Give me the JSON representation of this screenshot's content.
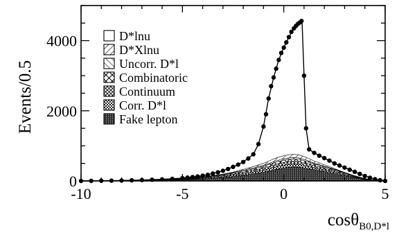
{
  "chart_data": {
    "type": "area",
    "title": "",
    "xlabel": "cosθ",
    "xlabel_subscript": "B0,D*l",
    "ylabel": "Events/0.5",
    "xlim": [
      -10,
      5
    ],
    "ylim": [
      0,
      5000
    ],
    "x_tick_labels": [
      "-10",
      "-5",
      "0",
      "5"
    ],
    "y_tick_labels": [
      "0",
      "2000",
      "4000"
    ],
    "legend_position": "top-left",
    "grid": false,
    "stack_order_bottom_to_top": [
      "Fake lepton",
      "Corr. D*l",
      "Continuum",
      "Combinatoric",
      "Uncorr. D*l",
      "D*Xlnu",
      "D*lnu"
    ],
    "legend": [
      {
        "label": "D*lnu",
        "pattern": "open"
      },
      {
        "label": "D*Xlnu",
        "pattern": "diag-right"
      },
      {
        "label": "Uncorr. D*l",
        "pattern": "diag-left"
      },
      {
        "label": "Combinatoric",
        "pattern": "cross"
      },
      {
        "label": "Continuum",
        "pattern": "dense-cross"
      },
      {
        "label": "Corr. D*l",
        "pattern": "checker"
      },
      {
        "label": "Fake lepton",
        "pattern": "dark-dots"
      }
    ],
    "bins_x": [
      -10,
      -9.5,
      -9,
      -8.5,
      -8,
      -7.5,
      -7,
      -6.5,
      -6,
      -5.5,
      -5,
      -4.5,
      -4,
      -3.5,
      -3,
      -2.5,
      -2,
      -1.5,
      -1,
      -0.75,
      -0.5,
      -0.25,
      0,
      0.25,
      0.5,
      0.75,
      1,
      1.25,
      1.5,
      2,
      2.5,
      3,
      3.5,
      4,
      4.5,
      5
    ],
    "series": [
      {
        "name": "Fake lepton",
        "values": [
          0,
          2,
          4,
          5,
          7,
          9,
          12,
          16,
          21,
          27,
          35,
          45,
          58,
          74,
          95,
          125,
          165,
          205,
          250,
          280,
          315,
          345,
          370,
          390,
          400,
          395,
          370,
          345,
          320,
          270,
          210,
          150,
          90,
          40,
          10,
          0
        ]
      },
      {
        "name": "Corr. D*l",
        "values": [
          0,
          1,
          1,
          2,
          2,
          3,
          4,
          5,
          6,
          8,
          10,
          13,
          16,
          20,
          25,
          32,
          40,
          48,
          58,
          65,
          70,
          75,
          78,
          80,
          80,
          78,
          72,
          65,
          55,
          45,
          35,
          25,
          15,
          7,
          2,
          0
        ]
      },
      {
        "name": "Continuum",
        "values": [
          0,
          1,
          2,
          2,
          3,
          4,
          5,
          6,
          8,
          10,
          12,
          15,
          18,
          22,
          28,
          35,
          42,
          50,
          60,
          65,
          70,
          75,
          78,
          80,
          80,
          78,
          74,
          68,
          60,
          50,
          40,
          30,
          20,
          10,
          3,
          0
        ]
      },
      {
        "name": "Combinatoric",
        "values": [
          0,
          1,
          1,
          2,
          2,
          3,
          3,
          4,
          5,
          7,
          9,
          11,
          14,
          18,
          22,
          28,
          35,
          42,
          50,
          55,
          60,
          62,
          65,
          66,
          66,
          64,
          60,
          55,
          48,
          40,
          32,
          22,
          14,
          6,
          2,
          0
        ]
      },
      {
        "name": "Uncorr. D*l",
        "values": [
          0,
          0,
          1,
          1,
          1,
          2,
          2,
          3,
          4,
          5,
          6,
          8,
          10,
          12,
          15,
          18,
          22,
          26,
          30,
          33,
          36,
          38,
          40,
          40,
          40,
          38,
          35,
          30,
          25,
          20,
          15,
          10,
          6,
          3,
          1,
          0
        ]
      },
      {
        "name": "D*Xlnu",
        "values": [
          0,
          0,
          0,
          0,
          0,
          0,
          0,
          0,
          0,
          0,
          0,
          1,
          3,
          6,
          10,
          16,
          25,
          40,
          55,
          65,
          75,
          83,
          88,
          92,
          92,
          89,
          82,
          72,
          60,
          40,
          20,
          8,
          3,
          0,
          0,
          0
        ]
      }
    ],
    "total_curve": {
      "name": "D*lnu",
      "x": [
        -10,
        -9,
        -8,
        -7,
        -6,
        -5,
        -4.5,
        -4,
        -3.5,
        -3,
        -2.5,
        -2,
        -1.5,
        -1.25,
        -1,
        -0.75,
        -0.5,
        -0.25,
        0,
        0.25,
        0.5,
        0.6,
        0.75,
        0.85,
        0.9,
        1,
        1.1,
        1.25,
        1.5,
        2,
        2.5,
        3,
        3.5,
        4,
        4.5,
        5
      ],
      "y": [
        0,
        5,
        12,
        25,
        45,
        80,
        110,
        150,
        210,
        290,
        400,
        540,
        760,
        1050,
        1550,
        2350,
        2950,
        3450,
        3800,
        4100,
        4350,
        4450,
        4500,
        4550,
        4560,
        3000,
        1500,
        900,
        800,
        650,
        500,
        380,
        260,
        140,
        50,
        0
      ]
    },
    "data_points": {
      "name": "Data",
      "x": [
        -10,
        -9.5,
        -9,
        -8.5,
        -8,
        -7.5,
        -7,
        -6.5,
        -6,
        -5.5,
        -5,
        -4.75,
        -4.5,
        -4.25,
        -4,
        -3.75,
        -3.5,
        -3.25,
        -3,
        -2.75,
        -2.5,
        -2.25,
        -2,
        -1.75,
        -1.5,
        -1.25,
        -1,
        -0.875,
        -0.75,
        -0.625,
        -0.5,
        -0.375,
        -0.25,
        -0.125,
        0,
        0.125,
        0.25,
        0.375,
        0.5,
        0.6,
        0.7,
        0.8,
        0.875,
        1,
        1.1,
        1.25,
        1.5,
        1.75,
        2,
        2.25,
        2.5,
        2.75,
        3,
        3.25,
        3.5,
        3.75,
        4,
        4.25,
        4.5,
        4.75,
        5
      ],
      "y": [
        0,
        2,
        5,
        8,
        12,
        18,
        25,
        35,
        45,
        60,
        80,
        95,
        110,
        128,
        150,
        175,
        210,
        245,
        290,
        340,
        400,
        465,
        540,
        640,
        760,
        1050,
        1550,
        1900,
        2350,
        2700,
        2950,
        3200,
        3450,
        3650,
        3800,
        3950,
        4100,
        4250,
        4350,
        4420,
        4480,
        4520,
        4560,
        3000,
        1500,
        900,
        800,
        720,
        650,
        580,
        500,
        440,
        380,
        320,
        260,
        200,
        140,
        90,
        50,
        20,
        0
      ]
    }
  }
}
